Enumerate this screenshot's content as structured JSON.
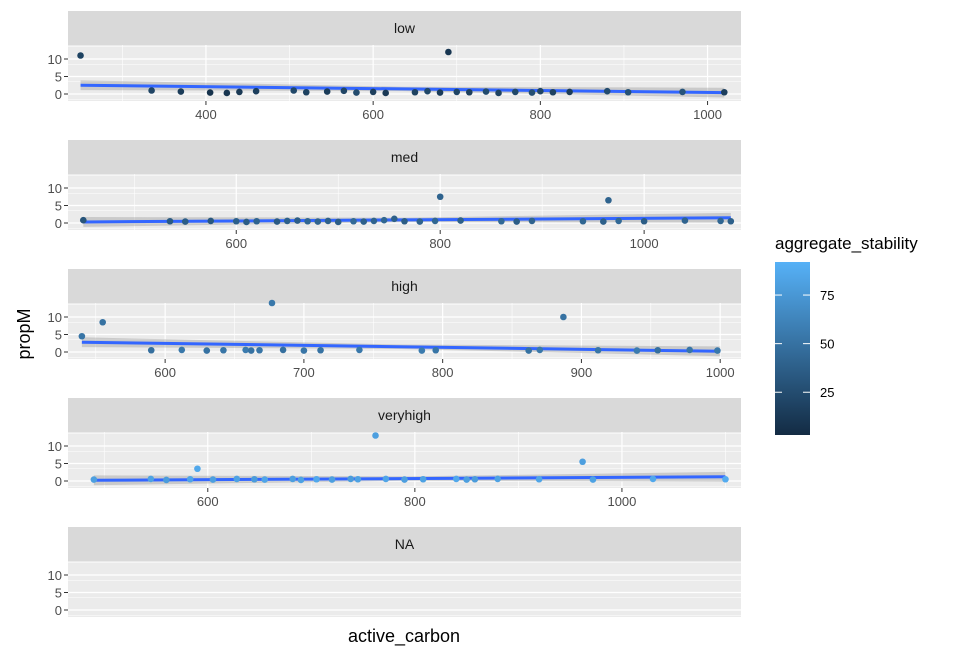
{
  "chart_data": {
    "type": "scatter",
    "xlabel": "active_carbon",
    "ylabel": "propM",
    "legend": {
      "title": "aggregate_stability",
      "placement": "right",
      "ticks": [
        25,
        50,
        75
      ],
      "tick_labels": [
        "25",
        "50",
        "75"
      ],
      "range": [
        3,
        92
      ],
      "color_low": "#132B43",
      "color_high": "#56B1F7"
    },
    "y_ticks": [
      0,
      5,
      10
    ],
    "y_tick_labels": [
      "0",
      "5",
      "10"
    ],
    "ylim": [
      -2,
      14
    ],
    "smooth_color": "#3366FF",
    "panels": [
      {
        "label": "low",
        "xlim": [
          235,
          1040
        ],
        "x_ticks": [
          400,
          600,
          800,
          1000
        ],
        "x_tick_labels": [
          "400",
          "600",
          "800",
          "1000"
        ],
        "trend": {
          "x": [
            250,
            1020
          ],
          "y": [
            2.5,
            0.4
          ]
        },
        "points": [
          {
            "x": 250,
            "y": 11,
            "c": 18
          },
          {
            "x": 335,
            "y": 1,
            "c": 20
          },
          {
            "x": 370,
            "y": 0.7,
            "c": 14
          },
          {
            "x": 405,
            "y": 0.4,
            "c": 8
          },
          {
            "x": 425,
            "y": 0.3,
            "c": 10
          },
          {
            "x": 440,
            "y": 0.6,
            "c": 12
          },
          {
            "x": 460,
            "y": 0.8,
            "c": 16
          },
          {
            "x": 505,
            "y": 1,
            "c": 22
          },
          {
            "x": 520,
            "y": 0.5,
            "c": 18
          },
          {
            "x": 545,
            "y": 0.7,
            "c": 14
          },
          {
            "x": 565,
            "y": 0.9,
            "c": 20
          },
          {
            "x": 580,
            "y": 0.4,
            "c": 24
          },
          {
            "x": 600,
            "y": 0.6,
            "c": 16
          },
          {
            "x": 615,
            "y": 0.3,
            "c": 12
          },
          {
            "x": 650,
            "y": 0.5,
            "c": 18
          },
          {
            "x": 665,
            "y": 0.8,
            "c": 22
          },
          {
            "x": 680,
            "y": 0.4,
            "c": 14
          },
          {
            "x": 690,
            "y": 12,
            "c": 10
          },
          {
            "x": 700,
            "y": 0.6,
            "c": 20
          },
          {
            "x": 715,
            "y": 0.5,
            "c": 16
          },
          {
            "x": 735,
            "y": 0.7,
            "c": 24
          },
          {
            "x": 750,
            "y": 0.3,
            "c": 18
          },
          {
            "x": 770,
            "y": 0.6,
            "c": 22
          },
          {
            "x": 790,
            "y": 0.4,
            "c": 26
          },
          {
            "x": 800,
            "y": 0.8,
            "c": 20
          },
          {
            "x": 815,
            "y": 0.5,
            "c": 18
          },
          {
            "x": 835,
            "y": 0.6,
            "c": 14
          },
          {
            "x": 880,
            "y": 0.8,
            "c": 24
          },
          {
            "x": 905,
            "y": 0.5,
            "c": 28
          },
          {
            "x": 970,
            "y": 0.6,
            "c": 30
          },
          {
            "x": 1020,
            "y": 0.5,
            "c": 16
          }
        ]
      },
      {
        "label": "med",
        "xlim": [
          435,
          1095
        ],
        "x_ticks": [
          600,
          800,
          1000
        ],
        "x_tick_labels": [
          "600",
          "800",
          "1000"
        ],
        "trend": {
          "x": [
            450,
            1085
          ],
          "y": [
            0.3,
            1.5
          ]
        },
        "points": [
          {
            "x": 450,
            "y": 0.8,
            "c": 30
          },
          {
            "x": 535,
            "y": 0.5,
            "c": 34
          },
          {
            "x": 550,
            "y": 0.4,
            "c": 36
          },
          {
            "x": 575,
            "y": 0.6,
            "c": 32
          },
          {
            "x": 600,
            "y": 0.5,
            "c": 38
          },
          {
            "x": 610,
            "y": 0.3,
            "c": 36
          },
          {
            "x": 620,
            "y": 0.5,
            "c": 40
          },
          {
            "x": 640,
            "y": 0.4,
            "c": 34
          },
          {
            "x": 650,
            "y": 0.6,
            "c": 38
          },
          {
            "x": 660,
            "y": 0.7,
            "c": 36
          },
          {
            "x": 670,
            "y": 0.5,
            "c": 42
          },
          {
            "x": 680,
            "y": 0.4,
            "c": 40
          },
          {
            "x": 690,
            "y": 0.6,
            "c": 38
          },
          {
            "x": 700,
            "y": 0.3,
            "c": 36
          },
          {
            "x": 715,
            "y": 0.5,
            "c": 44
          },
          {
            "x": 725,
            "y": 0.4,
            "c": 38
          },
          {
            "x": 735,
            "y": 0.6,
            "c": 40
          },
          {
            "x": 745,
            "y": 0.8,
            "c": 42
          },
          {
            "x": 755,
            "y": 1.2,
            "c": 38
          },
          {
            "x": 765,
            "y": 0.5,
            "c": 36
          },
          {
            "x": 780,
            "y": 0.4,
            "c": 40
          },
          {
            "x": 795,
            "y": 0.6,
            "c": 42
          },
          {
            "x": 800,
            "y": 7.5,
            "c": 40
          },
          {
            "x": 820,
            "y": 0.7,
            "c": 38
          },
          {
            "x": 860,
            "y": 0.5,
            "c": 44
          },
          {
            "x": 875,
            "y": 0.4,
            "c": 36
          },
          {
            "x": 890,
            "y": 0.6,
            "c": 40
          },
          {
            "x": 940,
            "y": 0.5,
            "c": 42
          },
          {
            "x": 960,
            "y": 0.4,
            "c": 38
          },
          {
            "x": 965,
            "y": 6.5,
            "c": 40
          },
          {
            "x": 975,
            "y": 0.6,
            "c": 44
          },
          {
            "x": 1000,
            "y": 0.5,
            "c": 36
          },
          {
            "x": 1040,
            "y": 0.7,
            "c": 40
          },
          {
            "x": 1075,
            "y": 0.6,
            "c": 42
          },
          {
            "x": 1085,
            "y": 0.5,
            "c": 38
          }
        ]
      },
      {
        "label": "high",
        "xlim": [
          530,
          1015
        ],
        "x_ticks": [
          600,
          700,
          800,
          900,
          1000
        ],
        "x_tick_labels": [
          "600",
          "700",
          "800",
          "900",
          "1000"
        ],
        "trend": {
          "x": [
            540,
            1000
          ],
          "y": [
            2.8,
            0.2
          ]
        },
        "points": [
          {
            "x": 540,
            "y": 4.5,
            "c": 52
          },
          {
            "x": 555,
            "y": 8.5,
            "c": 50
          },
          {
            "x": 590,
            "y": 0.5,
            "c": 48
          },
          {
            "x": 612,
            "y": 0.6,
            "c": 54
          },
          {
            "x": 630,
            "y": 0.4,
            "c": 50
          },
          {
            "x": 642,
            "y": 0.5,
            "c": 52
          },
          {
            "x": 658,
            "y": 0.6,
            "c": 56
          },
          {
            "x": 662,
            "y": 0.4,
            "c": 50
          },
          {
            "x": 668,
            "y": 0.5,
            "c": 52
          },
          {
            "x": 677,
            "y": 14,
            "c": 54
          },
          {
            "x": 685,
            "y": 0.6,
            "c": 48
          },
          {
            "x": 700,
            "y": 0.4,
            "c": 52
          },
          {
            "x": 712,
            "y": 0.5,
            "c": 50
          },
          {
            "x": 740,
            "y": 0.6,
            "c": 54
          },
          {
            "x": 785,
            "y": 0.4,
            "c": 56
          },
          {
            "x": 795,
            "y": 0.5,
            "c": 52
          },
          {
            "x": 862,
            "y": 0.4,
            "c": 50
          },
          {
            "x": 870,
            "y": 0.6,
            "c": 54
          },
          {
            "x": 887,
            "y": 10,
            "c": 50
          },
          {
            "x": 912,
            "y": 0.5,
            "c": 52
          },
          {
            "x": 940,
            "y": 0.4,
            "c": 56
          },
          {
            "x": 955,
            "y": 0.5,
            "c": 48
          },
          {
            "x": 978,
            "y": 0.6,
            "c": 52
          },
          {
            "x": 998,
            "y": 0.4,
            "c": 54
          }
        ]
      },
      {
        "label": "veryhigh",
        "xlim": [
          465,
          1115
        ],
        "x_ticks": [
          600,
          800,
          1000
        ],
        "x_tick_labels": [
          "600",
          "800",
          "1000"
        ],
        "trend": {
          "x": [
            490,
            1100
          ],
          "y": [
            0.2,
            1.2
          ]
        },
        "points": [
          {
            "x": 490,
            "y": 0.4,
            "c": 80
          },
          {
            "x": 545,
            "y": 0.6,
            "c": 82
          },
          {
            "x": 560,
            "y": 0.3,
            "c": 78
          },
          {
            "x": 583,
            "y": 0.5,
            "c": 84
          },
          {
            "x": 590,
            "y": 3.5,
            "c": 86
          },
          {
            "x": 605,
            "y": 0.4,
            "c": 80
          },
          {
            "x": 628,
            "y": 0.6,
            "c": 82
          },
          {
            "x": 645,
            "y": 0.5,
            "c": 78
          },
          {
            "x": 655,
            "y": 0.4,
            "c": 84
          },
          {
            "x": 682,
            "y": 0.6,
            "c": 80
          },
          {
            "x": 690,
            "y": 0.3,
            "c": 82
          },
          {
            "x": 705,
            "y": 0.5,
            "c": 86
          },
          {
            "x": 720,
            "y": 0.4,
            "c": 80
          },
          {
            "x": 738,
            "y": 0.6,
            "c": 78
          },
          {
            "x": 745,
            "y": 0.5,
            "c": 82
          },
          {
            "x": 762,
            "y": 13,
            "c": 80
          },
          {
            "x": 772,
            "y": 0.6,
            "c": 84
          },
          {
            "x": 790,
            "y": 0.4,
            "c": 80
          },
          {
            "x": 808,
            "y": 0.5,
            "c": 82
          },
          {
            "x": 840,
            "y": 0.6,
            "c": 86
          },
          {
            "x": 850,
            "y": 0.4,
            "c": 80
          },
          {
            "x": 858,
            "y": 0.5,
            "c": 78
          },
          {
            "x": 880,
            "y": 0.6,
            "c": 82
          },
          {
            "x": 920,
            "y": 0.5,
            "c": 84
          },
          {
            "x": 962,
            "y": 5.5,
            "c": 80
          },
          {
            "x": 972,
            "y": 0.4,
            "c": 82
          },
          {
            "x": 1030,
            "y": 0.6,
            "c": 86
          },
          {
            "x": 1100,
            "y": 0.5,
            "c": 88
          }
        ]
      },
      {
        "label": "NA",
        "xlim": [
          0,
          1
        ],
        "x_ticks": [],
        "x_tick_labels": [],
        "trend": null,
        "points": []
      }
    ]
  }
}
